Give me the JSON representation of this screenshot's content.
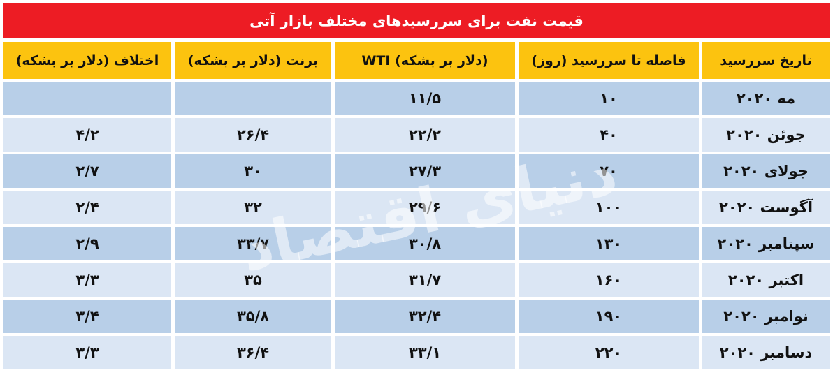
{
  "title": "قیمت نفت برای سررسیدهای مختلف بازار آتی",
  "headers": [
    "تاریخ سررسید",
    "فاصله تا سررسید (روز)",
    "WTI (دلار بر بشکه)",
    "برنت (دلار بر بشکه)",
    "اختلاف (دلار بر بشکه)"
  ],
  "rows": [
    [
      "مه ۲۰۲۰",
      "۱۰",
      "۱۱/۵",
      "",
      ""
    ],
    [
      "جوئن ۲۰۲۰",
      "۴۰",
      "۲۲/۲",
      "۲۶/۴",
      "۴/۲"
    ],
    [
      "جولای ۲۰۲۰",
      "۷۰",
      "۲۷/۳",
      "۳۰",
      "۲/۷"
    ],
    [
      "آگوست ۲۰۲۰",
      "۱۰۰",
      "۲۹/۶",
      "۳۲",
      "۲/۴"
    ],
    [
      "سپتامبر ۲۰۲۰",
      "۱۳۰",
      "۳۰/۸",
      "۳۳/۷",
      "۲/۹"
    ],
    [
      "اکتبر ۲۰۲۰",
      "۱۶۰",
      "۳۱/۷",
      "۳۵",
      "۳/۳"
    ],
    [
      "نوامبر ۲۰۲۰",
      "۱۹۰",
      "۳۲/۴",
      "۳۵/۸",
      "۳/۴"
    ],
    [
      "دسامبر ۲۰۲۰",
      "۲۲۰",
      "۳۳/۱",
      "۳۶/۴",
      "۳/۳"
    ]
  ],
  "watermark": "دنیای اقتصاد",
  "colors": {
    "title_bg": "#ed1c24",
    "header_bg": "#fcc30f",
    "row_dark": "#b8cfe8",
    "row_light": "#dbe6f4"
  }
}
